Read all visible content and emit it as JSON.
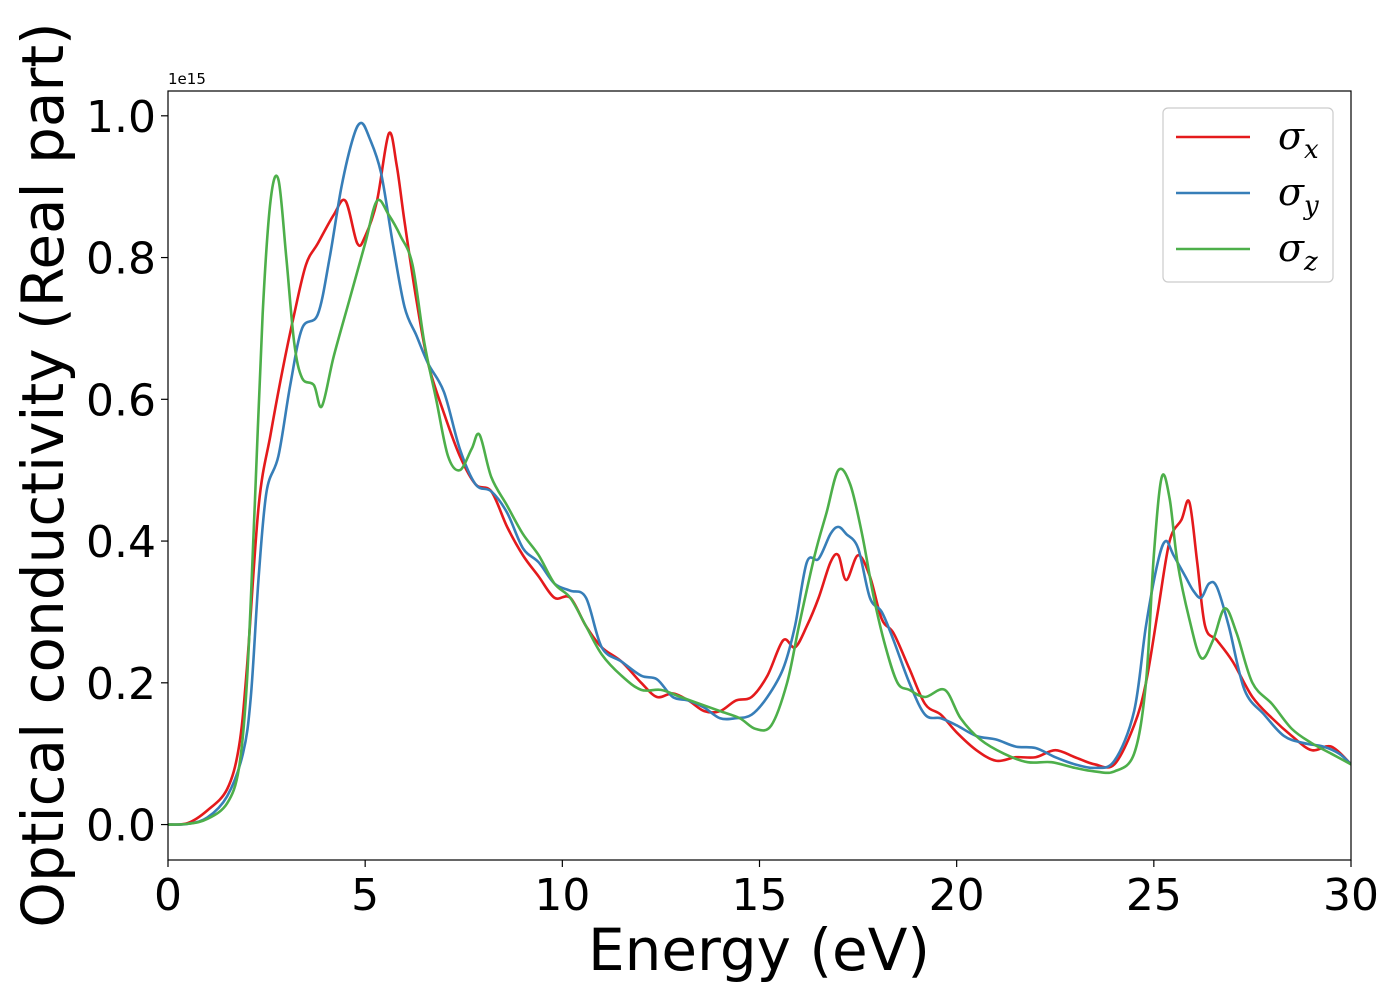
{
  "chart_data": {
    "type": "line",
    "title": "",
    "xlabel": "Energy (eV)",
    "ylabel": "Optical conductivity (Real part)",
    "y_offset_label": "1e15",
    "xlim": [
      0,
      30
    ],
    "ylim": [
      -0.05,
      1.035
    ],
    "x_ticks": [
      0,
      5,
      10,
      15,
      20,
      25,
      30
    ],
    "x_tick_labels": [
      "0",
      "5",
      "10",
      "15",
      "20",
      "25",
      "30"
    ],
    "y_ticks": [
      0.0,
      0.2,
      0.4,
      0.6,
      0.8,
      1.0
    ],
    "y_tick_labels": [
      "0.0",
      "0.2",
      "0.4",
      "0.6",
      "0.8",
      "1.0"
    ],
    "grid": false,
    "legend_position": "top-right",
    "series": [
      {
        "name": "σx",
        "legend_base": "σ",
        "legend_sub": "x",
        "color": "#e41a1c",
        "x": [
          0,
          0.5,
          1.0,
          1.5,
          1.8,
          2.0,
          2.3,
          2.6,
          2.9,
          3.2,
          3.5,
          3.8,
          4.2,
          4.5,
          4.8,
          5.0,
          5.3,
          5.6,
          5.8,
          6.0,
          6.3,
          6.6,
          7.0,
          7.4,
          7.8,
          8.2,
          8.6,
          9.0,
          9.4,
          9.8,
          10.2,
          10.6,
          11.0,
          11.5,
          12.0,
          12.4,
          12.8,
          13.2,
          13.6,
          14.0,
          14.4,
          14.8,
          15.2,
          15.6,
          15.9,
          16.2,
          16.5,
          16.8,
          17.0,
          17.2,
          17.5,
          17.8,
          18.1,
          18.4,
          18.8,
          19.2,
          19.6,
          20.0,
          20.5,
          21.0,
          21.5,
          22.0,
          22.5,
          23.0,
          23.5,
          24.0,
          24.5,
          24.8,
          25.1,
          25.4,
          25.7,
          25.9,
          26.1,
          26.3,
          26.6,
          27.0,
          27.5,
          28.0,
          28.5,
          29.0,
          29.5,
          30.0
        ],
        "values": [
          0.0,
          0.002,
          0.02,
          0.05,
          0.11,
          0.22,
          0.45,
          0.55,
          0.64,
          0.72,
          0.79,
          0.82,
          0.86,
          0.88,
          0.82,
          0.83,
          0.88,
          0.975,
          0.93,
          0.85,
          0.74,
          0.65,
          0.58,
          0.52,
          0.48,
          0.47,
          0.42,
          0.38,
          0.35,
          0.32,
          0.32,
          0.28,
          0.25,
          0.23,
          0.2,
          0.18,
          0.185,
          0.175,
          0.16,
          0.16,
          0.175,
          0.18,
          0.21,
          0.26,
          0.25,
          0.28,
          0.32,
          0.37,
          0.38,
          0.345,
          0.38,
          0.35,
          0.29,
          0.27,
          0.22,
          0.17,
          0.155,
          0.13,
          0.105,
          0.09,
          0.095,
          0.095,
          0.105,
          0.095,
          0.085,
          0.085,
          0.14,
          0.2,
          0.3,
          0.4,
          0.43,
          0.455,
          0.37,
          0.28,
          0.26,
          0.23,
          0.18,
          0.15,
          0.125,
          0.105,
          0.11,
          0.085
        ]
      },
      {
        "name": "σy",
        "legend_base": "σ",
        "legend_sub": "y",
        "color": "#377eb8",
        "x": [
          0,
          0.5,
          1.0,
          1.5,
          1.9,
          2.1,
          2.3,
          2.5,
          2.8,
          3.1,
          3.4,
          3.8,
          4.1,
          4.4,
          4.7,
          4.9,
          5.1,
          5.4,
          5.7,
          6.0,
          6.3,
          6.6,
          7.0,
          7.4,
          7.8,
          8.2,
          8.6,
          9.0,
          9.4,
          9.8,
          10.2,
          10.6,
          11.0,
          11.5,
          12.0,
          12.4,
          12.8,
          13.2,
          13.6,
          14.0,
          14.4,
          14.8,
          15.2,
          15.6,
          15.9,
          16.2,
          16.5,
          16.8,
          17.0,
          17.2,
          17.5,
          17.8,
          18.1,
          18.4,
          18.8,
          19.2,
          19.6,
          20.0,
          20.5,
          21.0,
          21.5,
          22.0,
          22.5,
          23.0,
          23.5,
          24.0,
          24.5,
          24.8,
          25.1,
          25.3,
          25.5,
          25.8,
          26.0,
          26.2,
          26.4,
          26.6,
          26.9,
          27.3,
          27.8,
          28.3,
          28.8,
          29.3,
          29.7,
          30.0
        ],
        "values": [
          0.0,
          0.001,
          0.01,
          0.04,
          0.1,
          0.18,
          0.35,
          0.47,
          0.52,
          0.62,
          0.7,
          0.72,
          0.8,
          0.9,
          0.97,
          0.99,
          0.97,
          0.92,
          0.82,
          0.73,
          0.69,
          0.65,
          0.61,
          0.53,
          0.48,
          0.47,
          0.44,
          0.39,
          0.37,
          0.34,
          0.33,
          0.32,
          0.25,
          0.23,
          0.21,
          0.205,
          0.18,
          0.175,
          0.165,
          0.15,
          0.15,
          0.155,
          0.18,
          0.22,
          0.28,
          0.37,
          0.375,
          0.41,
          0.42,
          0.41,
          0.39,
          0.32,
          0.3,
          0.26,
          0.2,
          0.155,
          0.15,
          0.14,
          0.125,
          0.12,
          0.11,
          0.108,
          0.095,
          0.085,
          0.08,
          0.09,
          0.16,
          0.28,
          0.37,
          0.4,
          0.38,
          0.35,
          0.33,
          0.32,
          0.34,
          0.335,
          0.28,
          0.19,
          0.155,
          0.125,
          0.115,
          0.11,
          0.1,
          0.085
        ]
      },
      {
        "name": "σz",
        "legend_base": "σ",
        "legend_sub": "z",
        "color": "#4daf4a",
        "x": [
          0,
          0.5,
          1.0,
          1.5,
          1.8,
          2.0,
          2.2,
          2.4,
          2.6,
          2.8,
          3.0,
          3.2,
          3.4,
          3.7,
          3.9,
          4.2,
          4.6,
          5.0,
          5.3,
          5.6,
          5.9,
          6.2,
          6.5,
          6.8,
          7.1,
          7.4,
          7.7,
          7.9,
          8.2,
          8.6,
          9.0,
          9.4,
          9.8,
          10.2,
          10.6,
          11.0,
          11.5,
          12.0,
          12.5,
          13.0,
          13.5,
          14.0,
          14.5,
          14.9,
          15.3,
          15.7,
          16.0,
          16.4,
          16.7,
          17.0,
          17.3,
          17.6,
          17.9,
          18.2,
          18.5,
          18.8,
          19.2,
          19.7,
          20.1,
          20.6,
          21.2,
          21.8,
          22.4,
          23.0,
          23.5,
          24.0,
          24.5,
          24.8,
          25.0,
          25.2,
          25.4,
          25.6,
          25.9,
          26.2,
          26.5,
          26.8,
          27.1,
          27.5,
          28.0,
          28.5,
          29.0,
          29.5,
          30.0
        ],
        "values": [
          0.0,
          0.001,
          0.008,
          0.03,
          0.08,
          0.2,
          0.45,
          0.72,
          0.88,
          0.91,
          0.8,
          0.68,
          0.63,
          0.62,
          0.59,
          0.66,
          0.74,
          0.82,
          0.88,
          0.86,
          0.83,
          0.79,
          0.68,
          0.6,
          0.52,
          0.5,
          0.53,
          0.55,
          0.49,
          0.45,
          0.41,
          0.38,
          0.34,
          0.32,
          0.28,
          0.24,
          0.21,
          0.19,
          0.19,
          0.18,
          0.17,
          0.16,
          0.15,
          0.135,
          0.14,
          0.2,
          0.28,
          0.38,
          0.44,
          0.5,
          0.48,
          0.41,
          0.32,
          0.25,
          0.2,
          0.19,
          0.18,
          0.19,
          0.15,
          0.12,
          0.1,
          0.088,
          0.088,
          0.08,
          0.075,
          0.075,
          0.1,
          0.2,
          0.38,
          0.49,
          0.46,
          0.37,
          0.29,
          0.235,
          0.26,
          0.305,
          0.27,
          0.2,
          0.17,
          0.135,
          0.115,
          0.1,
          0.085
        ]
      }
    ]
  }
}
